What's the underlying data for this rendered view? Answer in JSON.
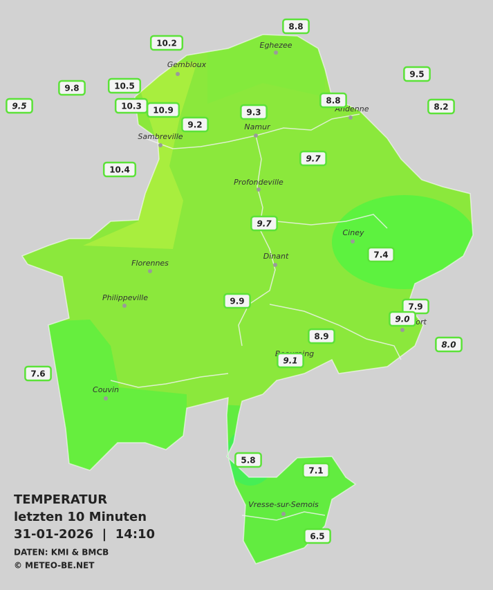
{
  "legend": {
    "title": "TEMPERATUR",
    "period": "letzten 10 Minuten",
    "timestamp": "31-01-2026  |  14:10",
    "source": "DATEN: KMI & BMCB",
    "copyright": "© METEO-BE.NET"
  },
  "cities": [
    "Eghezee",
    "Gembloux",
    "Andenne",
    "Namur",
    "Sambreville",
    "Profondeville",
    "Ciney",
    "Dinant",
    "Florennes",
    "Philippeville",
    "Rochefort",
    "Beauraing",
    "Couvin",
    "Vresse-sur-Semois"
  ],
  "stations": [
    {
      "label": "10.2"
    },
    {
      "label": "8.8"
    },
    {
      "label": "9.5"
    },
    {
      "label": "9.8"
    },
    {
      "label": "10.5"
    },
    {
      "label": "10.3"
    },
    {
      "label": "10.9"
    },
    {
      "label": "9.5",
      "italic": true
    },
    {
      "label": "9.3"
    },
    {
      "label": "8.8"
    },
    {
      "label": "8.2"
    },
    {
      "label": "9.2"
    },
    {
      "label": "9.7",
      "italic": true
    },
    {
      "label": "10.4"
    },
    {
      "label": "9.7",
      "italic": true
    },
    {
      "label": "7.4"
    },
    {
      "label": "9.9"
    },
    {
      "label": "7.9"
    },
    {
      "label": "9.0",
      "italic": true
    },
    {
      "label": "8.9"
    },
    {
      "label": "8.0",
      "italic": true
    },
    {
      "label": "9.1",
      "italic": true
    },
    {
      "label": "7.6"
    },
    {
      "label": "5.8"
    },
    {
      "label": "7.1"
    },
    {
      "label": "6.5"
    }
  ]
}
